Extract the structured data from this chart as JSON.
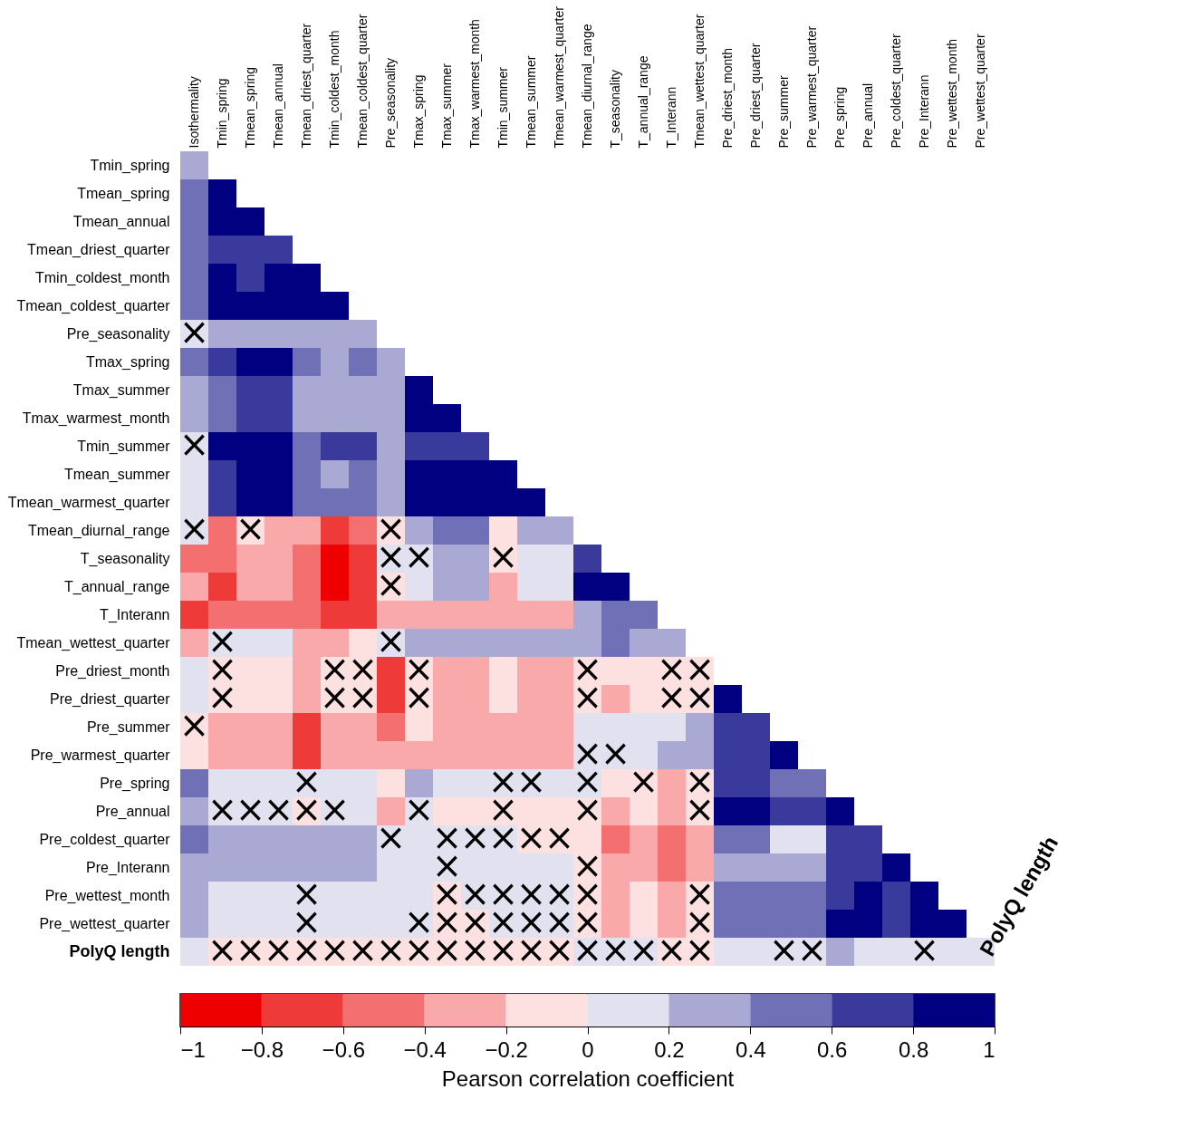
{
  "chart_data": {
    "type": "heatmap",
    "categories": [
      "Isothermality",
      "Tmin_spring",
      "Tmean_spring",
      "Tmean_annual",
      "Tmean_driest_quarter",
      "Tmin_coldest_month",
      "Tmean_coldest_quarter",
      "Pre_seasonality",
      "Tmax_spring",
      "Tmax_summer",
      "Tmax_warmest_month",
      "Tmin_summer",
      "Tmean_summer",
      "Tmean_warmest_quarter",
      "Tmean_diurnal_range",
      "T_seasonality",
      "T_annual_range",
      "T_Interann",
      "Tmean_wettest_quarter",
      "Pre_driest_month",
      "Pre_driest_quarter",
      "Pre_summer",
      "Pre_warmest_quarter",
      "Pre_spring",
      "Pre_annual",
      "Pre_coldest_quarter",
      "Pre_Interann",
      "Pre_wettest_month",
      "Pre_wettest_quarter"
    ],
    "y_categories": [
      "Tmin_spring",
      "Tmean_spring",
      "Tmean_annual",
      "Tmean_driest_quarter",
      "Tmin_coldest_month",
      "Tmean_coldest_quarter",
      "Pre_seasonality",
      "Tmax_spring",
      "Tmax_summer",
      "Tmax_warmest_month",
      "Tmin_summer",
      "Tmean_summer",
      "Tmean_warmest_quarter",
      "Tmean_diurnal_range",
      "T_seasonality",
      "T_annual_range",
      "T_Interann",
      "Tmean_wettest_quarter",
      "Pre_driest_month",
      "Pre_driest_quarter",
      "Pre_summer",
      "Pre_warmest_quarter",
      "Pre_spring",
      "Pre_annual",
      "Pre_coldest_quarter",
      "Pre_Interann",
      "Pre_wettest_month",
      "Pre_wettest_quarter",
      "PolyQ length"
    ],
    "cells": [
      [
        0.3,
        null,
        null,
        null,
        null,
        null,
        null,
        null,
        null,
        null,
        null,
        null,
        null,
        null,
        null,
        null,
        null,
        null,
        null,
        null,
        null,
        null,
        null,
        null,
        null,
        null,
        null,
        null,
        null
      ],
      [
        0.5,
        0.9,
        null,
        null,
        null,
        null,
        null,
        null,
        null,
        null,
        null,
        null,
        null,
        null,
        null,
        null,
        null,
        null,
        null,
        null,
        null,
        null,
        null,
        null,
        null,
        null,
        null,
        null,
        null
      ],
      [
        0.5,
        0.9,
        0.9,
        null,
        null,
        null,
        null,
        null,
        null,
        null,
        null,
        null,
        null,
        null,
        null,
        null,
        null,
        null,
        null,
        null,
        null,
        null,
        null,
        null,
        null,
        null,
        null,
        null,
        null
      ],
      [
        0.5,
        0.7,
        0.7,
        0.7,
        null,
        null,
        null,
        null,
        null,
        null,
        null,
        null,
        null,
        null,
        null,
        null,
        null,
        null,
        null,
        null,
        null,
        null,
        null,
        null,
        null,
        null,
        null,
        null,
        null
      ],
      [
        0.5,
        0.9,
        0.7,
        0.9,
        0.9,
        null,
        null,
        null,
        null,
        null,
        null,
        null,
        null,
        null,
        null,
        null,
        null,
        null,
        null,
        null,
        null,
        null,
        null,
        null,
        null,
        null,
        null,
        null,
        null
      ],
      [
        0.5,
        0.9,
        0.9,
        0.9,
        0.9,
        0.9,
        null,
        null,
        null,
        null,
        null,
        null,
        null,
        null,
        null,
        null,
        null,
        null,
        null,
        null,
        null,
        null,
        null,
        null,
        null,
        null,
        null,
        null,
        null
      ],
      [
        0.1,
        0.3,
        0.3,
        0.3,
        0.3,
        0.3,
        0.3,
        null,
        null,
        null,
        null,
        null,
        null,
        null,
        null,
        null,
        null,
        null,
        null,
        null,
        null,
        null,
        null,
        null,
        null,
        null,
        null,
        null,
        null
      ],
      [
        0.5,
        0.7,
        0.9,
        0.9,
        0.5,
        0.3,
        0.5,
        0.3,
        null,
        null,
        null,
        null,
        null,
        null,
        null,
        null,
        null,
        null,
        null,
        null,
        null,
        null,
        null,
        null,
        null,
        null,
        null,
        null,
        null
      ],
      [
        0.3,
        0.5,
        0.7,
        0.7,
        0.3,
        0.3,
        0.3,
        0.3,
        0.9,
        null,
        null,
        null,
        null,
        null,
        null,
        null,
        null,
        null,
        null,
        null,
        null,
        null,
        null,
        null,
        null,
        null,
        null,
        null,
        null
      ],
      [
        0.3,
        0.5,
        0.7,
        0.7,
        0.3,
        0.3,
        0.3,
        0.3,
        0.9,
        0.9,
        null,
        null,
        null,
        null,
        null,
        null,
        null,
        null,
        null,
        null,
        null,
        null,
        null,
        null,
        null,
        null,
        null,
        null,
        null
      ],
      [
        0.1,
        0.9,
        0.9,
        0.9,
        0.5,
        0.7,
        0.7,
        0.3,
        0.7,
        0.7,
        0.7,
        null,
        null,
        null,
        null,
        null,
        null,
        null,
        null,
        null,
        null,
        null,
        null,
        null,
        null,
        null,
        null,
        null,
        null
      ],
      [
        0.1,
        0.7,
        0.9,
        0.9,
        0.5,
        0.3,
        0.5,
        0.3,
        0.9,
        0.9,
        0.9,
        0.9,
        null,
        null,
        null,
        null,
        null,
        null,
        null,
        null,
        null,
        null,
        null,
        null,
        null,
        null,
        null,
        null,
        null
      ],
      [
        0.1,
        0.7,
        0.9,
        0.9,
        0.5,
        0.5,
        0.5,
        0.3,
        0.9,
        0.9,
        0.9,
        0.9,
        0.9,
        null,
        null,
        null,
        null,
        null,
        null,
        null,
        null,
        null,
        null,
        null,
        null,
        null,
        null,
        null,
        null
      ],
      [
        0.1,
        -0.5,
        -0.1,
        -0.3,
        -0.3,
        -0.7,
        -0.5,
        -0.1,
        0.3,
        0.5,
        0.5,
        -0.1,
        0.3,
        0.3,
        null,
        null,
        null,
        null,
        null,
        null,
        null,
        null,
        null,
        null,
        null,
        null,
        null,
        null,
        null
      ],
      [
        -0.5,
        -0.5,
        -0.3,
        -0.3,
        -0.5,
        -0.9,
        -0.7,
        0.1,
        0.1,
        0.3,
        0.3,
        -0.1,
        0.1,
        0.1,
        0.7,
        null,
        null,
        null,
        null,
        null,
        null,
        null,
        null,
        null,
        null,
        null,
        null,
        null,
        null
      ],
      [
        -0.3,
        -0.7,
        -0.3,
        -0.3,
        -0.5,
        -0.9,
        -0.7,
        -0.1,
        0.1,
        0.3,
        0.3,
        -0.3,
        0.1,
        0.1,
        0.9,
        0.9,
        null,
        null,
        null,
        null,
        null,
        null,
        null,
        null,
        null,
        null,
        null,
        null,
        null
      ],
      [
        -0.7,
        -0.5,
        -0.5,
        -0.5,
        -0.5,
        -0.7,
        -0.7,
        -0.3,
        -0.3,
        -0.3,
        -0.3,
        -0.3,
        -0.3,
        -0.3,
        0.3,
        0.5,
        0.5,
        null,
        null,
        null,
        null,
        null,
        null,
        null,
        null,
        null,
        null,
        null,
        null
      ],
      [
        -0.3,
        0.1,
        0.1,
        0.1,
        -0.3,
        -0.3,
        -0.1,
        0.1,
        0.3,
        0.3,
        0.3,
        0.3,
        0.3,
        0.3,
        0.3,
        0.5,
        0.3,
        0.3,
        null,
        null,
        null,
        null,
        null,
        null,
        null,
        null,
        null,
        null,
        null
      ],
      [
        0.1,
        -0.1,
        -0.1,
        -0.1,
        -0.3,
        -0.1,
        -0.1,
        -0.7,
        -0.1,
        -0.3,
        -0.3,
        -0.1,
        -0.3,
        -0.3,
        -0.1,
        -0.1,
        -0.1,
        -0.1,
        -0.1,
        null,
        null,
        null,
        null,
        null,
        null,
        null,
        null,
        null,
        null
      ],
      [
        0.1,
        -0.1,
        -0.1,
        -0.1,
        -0.3,
        -0.1,
        -0.1,
        -0.7,
        -0.1,
        -0.3,
        -0.3,
        -0.1,
        -0.3,
        -0.3,
        -0.1,
        -0.3,
        -0.1,
        -0.1,
        -0.1,
        0.9,
        null,
        null,
        null,
        null,
        null,
        null,
        null,
        null,
        null
      ],
      [
        -0.1,
        -0.3,
        -0.3,
        -0.3,
        -0.7,
        -0.3,
        -0.3,
        -0.5,
        -0.1,
        -0.3,
        -0.3,
        -0.3,
        -0.3,
        -0.3,
        0.1,
        0.1,
        0.1,
        0.1,
        0.3,
        0.7,
        0.7,
        null,
        null,
        null,
        null,
        null,
        null,
        null,
        null
      ],
      [
        -0.1,
        -0.3,
        -0.3,
        -0.3,
        -0.7,
        -0.3,
        -0.3,
        -0.3,
        -0.3,
        -0.3,
        -0.3,
        -0.3,
        -0.3,
        -0.3,
        0.1,
        0.1,
        0.1,
        0.3,
        0.3,
        0.7,
        0.7,
        0.9,
        null,
        null,
        null,
        null,
        null,
        null,
        null
      ],
      [
        0.5,
        0.1,
        0.1,
        0.1,
        0.1,
        0.1,
        0.1,
        -0.1,
        0.3,
        0.1,
        0.1,
        0.1,
        0.1,
        0.1,
        0.1,
        -0.1,
        -0.1,
        -0.3,
        -0.1,
        0.7,
        0.7,
        0.5,
        0.5,
        null,
        null,
        null,
        null,
        null,
        null
      ],
      [
        0.3,
        0.1,
        0.1,
        0.1,
        -0.1,
        0.1,
        0.1,
        -0.3,
        0.1,
        -0.1,
        -0.1,
        -0.1,
        -0.1,
        -0.1,
        -0.1,
        -0.3,
        -0.1,
        -0.3,
        -0.1,
        0.9,
        0.9,
        0.7,
        0.7,
        0.9,
        null,
        null,
        null,
        null,
        null
      ],
      [
        0.5,
        0.3,
        0.3,
        0.3,
        0.3,
        0.3,
        0.3,
        0.1,
        0.1,
        0.1,
        0.1,
        0.1,
        -0.1,
        -0.1,
        -0.1,
        -0.5,
        -0.3,
        -0.5,
        -0.3,
        0.5,
        0.5,
        0.1,
        0.1,
        0.7,
        0.7,
        null,
        null,
        null,
        null
      ],
      [
        0.3,
        0.3,
        0.3,
        0.3,
        0.3,
        0.3,
        0.3,
        0.1,
        0.1,
        0.1,
        0.1,
        0.1,
        0.1,
        0.1,
        -0.1,
        -0.3,
        -0.3,
        -0.5,
        -0.3,
        0.3,
        0.3,
        0.3,
        0.3,
        0.7,
        0.7,
        0.9,
        null,
        null,
        null
      ],
      [
        0.3,
        0.1,
        0.1,
        0.1,
        0.1,
        0.1,
        0.1,
        0.1,
        0.1,
        -0.1,
        0.1,
        0.1,
        0.1,
        0.1,
        -0.1,
        -0.3,
        -0.1,
        -0.3,
        -0.1,
        0.5,
        0.5,
        0.5,
        0.5,
        0.7,
        0.9,
        0.7,
        0.9,
        null,
        null
      ],
      [
        0.3,
        0.1,
        0.1,
        0.1,
        0.1,
        0.1,
        0.1,
        0.1,
        0.1,
        -0.1,
        -0.1,
        0.1,
        0.1,
        0.1,
        -0.1,
        -0.3,
        -0.1,
        -0.3,
        -0.1,
        0.5,
        0.5,
        0.5,
        0.5,
        0.9,
        0.9,
        0.7,
        0.9,
        0.9,
        null
      ],
      [
        0.1,
        -0.1,
        -0.1,
        -0.1,
        -0.1,
        -0.1,
        -0.1,
        -0.1,
        -0.1,
        -0.1,
        -0.1,
        -0.1,
        -0.1,
        -0.1,
        0.1,
        0.1,
        0.1,
        -0.1,
        -0.1,
        0.1,
        0.1,
        0.1,
        0.1,
        0.3,
        0.1,
        0.1,
        0.1,
        0.1,
        0.1
      ]
    ],
    "cell_labels": [
      [
        null,
        null,
        null,
        null,
        null,
        null,
        null,
        null,
        null,
        null,
        null,
        null,
        null,
        null,
        null,
        null,
        null,
        null,
        null,
        null,
        null,
        null,
        null,
        null,
        null,
        null,
        null,
        null,
        null
      ],
      [
        null,
        null,
        null,
        null,
        null,
        null,
        null,
        null,
        null,
        null,
        null,
        null,
        null,
        null,
        null,
        null,
        null,
        null,
        null,
        null,
        null,
        null,
        null,
        null,
        null,
        null,
        null,
        null,
        null
      ],
      [
        null,
        null,
        null,
        null,
        null,
        null,
        null,
        null,
        null,
        null,
        null,
        null,
        null,
        null,
        null,
        null,
        null,
        null,
        null,
        null,
        null,
        null,
        null,
        null,
        null,
        null,
        null,
        null,
        null
      ],
      [
        null,
        null,
        null,
        null,
        null,
        null,
        null,
        null,
        null,
        null,
        null,
        null,
        null,
        null,
        null,
        null,
        null,
        null,
        null,
        null,
        null,
        null,
        null,
        null,
        null,
        null,
        null,
        null,
        null
      ],
      [
        null,
        null,
        null,
        null,
        null,
        null,
        null,
        null,
        null,
        null,
        null,
        null,
        null,
        null,
        null,
        null,
        null,
        null,
        null,
        null,
        null,
        null,
        null,
        null,
        null,
        null,
        null,
        null,
        null
      ],
      [
        null,
        null,
        null,
        null,
        null,
        null,
        null,
        null,
        null,
        null,
        null,
        null,
        null,
        null,
        null,
        null,
        null,
        null,
        null,
        null,
        null,
        null,
        null,
        null,
        null,
        null,
        null,
        null,
        null
      ],
      [
        "×",
        null,
        null,
        null,
        null,
        null,
        null,
        null,
        null,
        null,
        null,
        null,
        null,
        null,
        null,
        null,
        null,
        null,
        null,
        null,
        null,
        null,
        null,
        null,
        null,
        null,
        null,
        null,
        null
      ],
      [
        null,
        null,
        null,
        null,
        null,
        null,
        null,
        null,
        null,
        null,
        null,
        null,
        null,
        null,
        null,
        null,
        null,
        null,
        null,
        null,
        null,
        null,
        null,
        null,
        null,
        null,
        null,
        null,
        null
      ],
      [
        null,
        null,
        null,
        null,
        null,
        null,
        null,
        null,
        null,
        null,
        null,
        null,
        null,
        null,
        null,
        null,
        null,
        null,
        null,
        null,
        null,
        null,
        null,
        null,
        null,
        null,
        null,
        null,
        null
      ],
      [
        null,
        null,
        null,
        null,
        null,
        null,
        null,
        null,
        null,
        null,
        null,
        null,
        null,
        null,
        null,
        null,
        null,
        null,
        null,
        null,
        null,
        null,
        null,
        null,
        null,
        null,
        null,
        null,
        null
      ],
      [
        "×",
        null,
        null,
        null,
        null,
        null,
        null,
        null,
        null,
        null,
        null,
        null,
        null,
        null,
        null,
        null,
        null,
        null,
        null,
        null,
        null,
        null,
        null,
        null,
        null,
        null,
        null,
        null,
        null
      ],
      [
        null,
        null,
        null,
        null,
        null,
        null,
        null,
        null,
        null,
        null,
        null,
        null,
        null,
        null,
        null,
        null,
        null,
        null,
        null,
        null,
        null,
        null,
        null,
        null,
        null,
        null,
        null,
        null,
        null
      ],
      [
        null,
        null,
        null,
        null,
        null,
        null,
        null,
        null,
        null,
        null,
        null,
        null,
        null,
        null,
        null,
        null,
        null,
        null,
        null,
        null,
        null,
        null,
        null,
        null,
        null,
        null,
        null,
        null,
        null
      ],
      [
        "×",
        null,
        "×",
        null,
        null,
        null,
        null,
        "×",
        null,
        null,
        null,
        null,
        null,
        null,
        null,
        null,
        null,
        null,
        null,
        null,
        null,
        null,
        null,
        null,
        null,
        null,
        null,
        null,
        null
      ],
      [
        null,
        null,
        null,
        null,
        null,
        null,
        null,
        "×",
        "×",
        null,
        null,
        "×",
        null,
        null,
        null,
        null,
        null,
        null,
        null,
        null,
        null,
        null,
        null,
        null,
        null,
        null,
        null,
        null,
        null
      ],
      [
        null,
        null,
        null,
        null,
        null,
        null,
        null,
        "×",
        null,
        null,
        null,
        null,
        null,
        null,
        null,
        null,
        null,
        null,
        null,
        null,
        null,
        null,
        null,
        null,
        null,
        null,
        null,
        null,
        null
      ],
      [
        null,
        null,
        null,
        null,
        null,
        null,
        null,
        null,
        null,
        null,
        null,
        null,
        null,
        null,
        null,
        null,
        null,
        null,
        null,
        null,
        null,
        null,
        null,
        null,
        null,
        null,
        null,
        null,
        null
      ],
      [
        null,
        "×",
        null,
        null,
        null,
        null,
        null,
        "×",
        null,
        null,
        null,
        null,
        null,
        null,
        null,
        null,
        null,
        null,
        null,
        null,
        null,
        null,
        null,
        null,
        null,
        null,
        null,
        null,
        null
      ],
      [
        null,
        "×",
        null,
        null,
        null,
        "×",
        "×",
        null,
        "×",
        null,
        null,
        null,
        null,
        null,
        "×",
        null,
        null,
        "×",
        "×",
        null,
        null,
        null,
        null,
        null,
        null,
        null,
        null,
        null,
        null
      ],
      [
        null,
        "×",
        null,
        null,
        null,
        "×",
        "×",
        null,
        "×",
        null,
        null,
        null,
        null,
        null,
        "×",
        null,
        null,
        "×",
        "×",
        null,
        null,
        null,
        null,
        null,
        null,
        null,
        null,
        null,
        null
      ],
      [
        "×",
        null,
        null,
        null,
        null,
        null,
        null,
        null,
        null,
        null,
        null,
        null,
        null,
        null,
        null,
        null,
        null,
        null,
        null,
        null,
        null,
        null,
        null,
        null,
        null,
        null,
        null,
        null,
        null
      ],
      [
        null,
        null,
        null,
        null,
        null,
        null,
        null,
        null,
        null,
        null,
        null,
        null,
        null,
        null,
        "×",
        "×",
        null,
        null,
        null,
        null,
        null,
        null,
        null,
        null,
        null,
        null,
        null,
        null,
        null
      ],
      [
        null,
        null,
        null,
        null,
        "×",
        null,
        null,
        null,
        null,
        null,
        null,
        "×",
        "×",
        null,
        "×",
        null,
        "×",
        null,
        "×",
        null,
        null,
        null,
        null,
        null,
        null,
        null,
        null,
        null,
        null
      ],
      [
        null,
        "×",
        "×",
        "×",
        "×",
        "×",
        null,
        null,
        "×",
        null,
        null,
        "×",
        null,
        null,
        "×",
        null,
        null,
        null,
        "×",
        null,
        null,
        null,
        null,
        null,
        null,
        null,
        null,
        null,
        null
      ],
      [
        null,
        null,
        null,
        null,
        null,
        null,
        null,
        "×",
        null,
        "×",
        "×",
        "×",
        "×",
        "×",
        null,
        null,
        null,
        null,
        null,
        null,
        null,
        null,
        null,
        null,
        null,
        null,
        null,
        null,
        null
      ],
      [
        null,
        null,
        null,
        null,
        null,
        null,
        null,
        null,
        null,
        "×",
        null,
        null,
        null,
        null,
        "×",
        null,
        null,
        null,
        null,
        null,
        null,
        null,
        null,
        null,
        null,
        null,
        null,
        null,
        null
      ],
      [
        null,
        null,
        null,
        null,
        "×",
        null,
        null,
        null,
        null,
        "×",
        "×",
        "×",
        "×",
        "×",
        "×",
        null,
        null,
        null,
        "×",
        null,
        null,
        null,
        null,
        null,
        null,
        null,
        null,
        null,
        null
      ],
      [
        null,
        null,
        null,
        null,
        "×",
        null,
        null,
        null,
        "×",
        "×",
        "×",
        "×",
        "×",
        "×",
        "×",
        null,
        null,
        null,
        "×",
        null,
        null,
        null,
        null,
        null,
        null,
        null,
        null,
        null,
        null
      ],
      [
        null,
        "×",
        "×",
        "×",
        "×",
        "×",
        "×",
        "×",
        "×",
        "×",
        "×",
        "×",
        "×",
        "×",
        "×",
        "×",
        "×",
        "×",
        "×",
        null,
        null,
        "×",
        "×",
        null,
        null,
        null,
        "×",
        null,
        null
      ]
    ],
    "colors": [
      "#ee0000",
      "#ef3a3a",
      "#f47070",
      "#f9a9a9",
      "#fde0e0",
      "#e1e1f0",
      "#a9a9d4",
      "#7070b7",
      "#3a3a9c",
      "#000080"
    ],
    "clim": [
      -1,
      1
    ],
    "cticks": [
      {
        "value": -1,
        "label": "−1"
      },
      {
        "value": -0.8,
        "label": "−0.8"
      },
      {
        "value": -0.6,
        "label": "−0.6"
      },
      {
        "value": -0.4,
        "label": "−0.4"
      },
      {
        "value": -0.2,
        "label": "−0.2"
      },
      0,
      0.2,
      0.4,
      0.6,
      0.8,
      1
    ],
    "clabel": "Pearson correlation coefficient",
    "annotations": [
      "PolyQ length"
    ]
  }
}
